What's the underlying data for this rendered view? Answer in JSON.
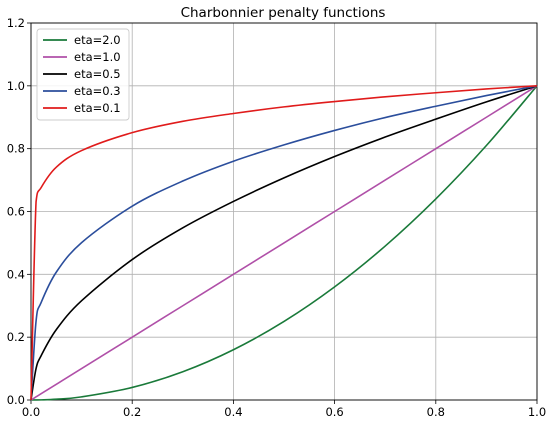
{
  "chart_data": {
    "type": "line",
    "title": "Charbonnier penalty functions",
    "xlabel": "",
    "ylabel": "",
    "xlim": [
      0.0,
      1.0
    ],
    "ylim": [
      0.0,
      1.2
    ],
    "x_ticks": [
      "0.0",
      "0.2",
      "0.4",
      "0.6",
      "0.8",
      "1.0"
    ],
    "y_ticks": [
      "0.0",
      "0.2",
      "0.4",
      "0.6",
      "0.8",
      "1.0",
      "1.2"
    ],
    "grid": true,
    "legend_position": "top-left",
    "x": [
      0.0,
      0.01,
      0.02,
      0.05,
      0.1,
      0.2,
      0.3,
      0.4,
      0.5,
      0.6,
      0.7,
      0.8,
      0.9,
      1.0
    ],
    "series": [
      {
        "name": "eta=2.0",
        "color": "#1a7a3a",
        "values": [
          0.0,
          0.0001,
          0.0004,
          0.0025,
          0.01,
          0.04,
          0.09,
          0.16,
          0.25,
          0.36,
          0.49,
          0.64,
          0.81,
          1.0
        ]
      },
      {
        "name": "eta=1.0",
        "color": "#b050a8",
        "values": [
          0.0,
          0.01,
          0.02,
          0.05,
          0.1,
          0.2,
          0.3,
          0.4,
          0.5,
          0.6,
          0.7,
          0.8,
          0.9,
          1.0
        ]
      },
      {
        "name": "eta=0.5",
        "color": "#000000",
        "values": [
          0.0,
          0.1,
          0.141,
          0.224,
          0.316,
          0.447,
          0.548,
          0.632,
          0.707,
          0.775,
          0.837,
          0.894,
          0.949,
          1.0
        ]
      },
      {
        "name": "eta=0.3",
        "color": "#2b4e9c",
        "values": [
          0.0,
          0.251,
          0.31,
          0.407,
          0.501,
          0.617,
          0.697,
          0.76,
          0.812,
          0.858,
          0.899,
          0.935,
          0.969,
          1.0
        ]
      },
      {
        "name": "eta=0.1",
        "color": "#e01b1b",
        "values": [
          0.0,
          0.631,
          0.676,
          0.741,
          0.794,
          0.851,
          0.887,
          0.912,
          0.933,
          0.95,
          0.965,
          0.978,
          0.99,
          1.0
        ]
      }
    ]
  }
}
